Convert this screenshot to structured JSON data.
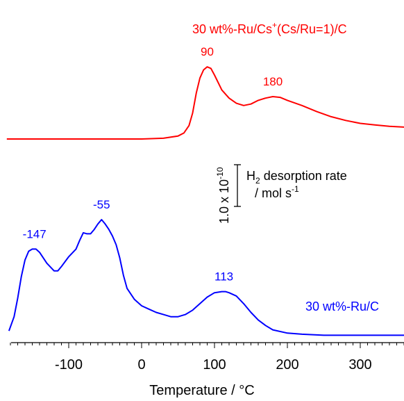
{
  "chart_data": {
    "type": "line",
    "xlabel": "Temperature  /  °C",
    "ylabel": "",
    "xlim": [
      -185,
      370
    ],
    "x_ticks": [
      -100,
      0,
      100,
      200,
      300
    ],
    "x_tick_labels": [
      "-100",
      "0",
      "100",
      "200",
      "300"
    ],
    "grid": false,
    "y_axis": "arbitrary units, curves offset vertically",
    "scale_bar": {
      "value_label": "1.0 x 10",
      "value_exponent": "-10",
      "quantity_main": "H",
      "quantity_sub": "2",
      "quantity_rest": " desorption rate",
      "unit_prefix": "/ mol s",
      "unit_exponent": "-1"
    },
    "series": [
      {
        "name": "30 wt%-Ru/Cs⁺(Cs/Ru=1)/C",
        "name_main": "30 wt%-Ru/Cs",
        "name_sup": "+",
        "name_tail": "(Cs/Ru=1)/C",
        "color": "#ff0000",
        "x": [
          -185,
          -150,
          -100,
          -50,
          0,
          30,
          50,
          58,
          65,
          70,
          75,
          80,
          85,
          90,
          95,
          100,
          110,
          120,
          130,
          140,
          150,
          160,
          170,
          180,
          190,
          200,
          220,
          240,
          260,
          280,
          300,
          320,
          340,
          360,
          370
        ],
        "y": [
          0.0,
          0.0,
          0.0,
          0.0,
          0.0,
          0.01,
          0.04,
          0.08,
          0.18,
          0.35,
          0.62,
          0.82,
          0.93,
          0.97,
          0.95,
          0.86,
          0.66,
          0.55,
          0.48,
          0.45,
          0.47,
          0.52,
          0.55,
          0.57,
          0.56,
          0.52,
          0.45,
          0.37,
          0.3,
          0.25,
          0.21,
          0.19,
          0.17,
          0.16,
          0.16
        ],
        "peak_labels": [
          {
            "x": 90,
            "label": "90"
          },
          {
            "x": 180,
            "label": "180"
          }
        ]
      },
      {
        "name": "30 wt%-Ru/C",
        "color": "#0000ff",
        "x": [
          -182,
          -175,
          -170,
          -165,
          -160,
          -155,
          -150,
          -145,
          -140,
          -130,
          -120,
          -115,
          -110,
          -100,
          -90,
          -85,
          -80,
          -75,
          -70,
          -65,
          -60,
          -55,
          -50,
          -45,
          -40,
          -35,
          -30,
          -25,
          -20,
          -10,
          0,
          10,
          20,
          30,
          40,
          50,
          60,
          70,
          80,
          90,
          100,
          110,
          115,
          120,
          130,
          140,
          150,
          160,
          170,
          180,
          200,
          220,
          250,
          280,
          300,
          320,
          340,
          360,
          370
        ],
        "y": [
          0.05,
          0.18,
          0.35,
          0.55,
          0.7,
          0.78,
          0.8,
          0.8,
          0.77,
          0.67,
          0.6,
          0.6,
          0.64,
          0.73,
          0.8,
          0.88,
          0.95,
          0.94,
          0.94,
          0.98,
          1.03,
          1.07,
          1.03,
          0.98,
          0.92,
          0.84,
          0.72,
          0.56,
          0.44,
          0.34,
          0.28,
          0.25,
          0.22,
          0.2,
          0.18,
          0.18,
          0.2,
          0.24,
          0.3,
          0.36,
          0.4,
          0.41,
          0.41,
          0.4,
          0.37,
          0.3,
          0.22,
          0.15,
          0.1,
          0.06,
          0.03,
          0.02,
          0.01,
          0.01,
          0.01,
          0.01,
          0.01,
          0.01,
          0.01
        ],
        "peak_labels": [
          {
            "x": -147,
            "label": "-147"
          },
          {
            "x": -55,
            "label": "-55"
          },
          {
            "x": 113,
            "label": "113"
          }
        ]
      }
    ]
  }
}
